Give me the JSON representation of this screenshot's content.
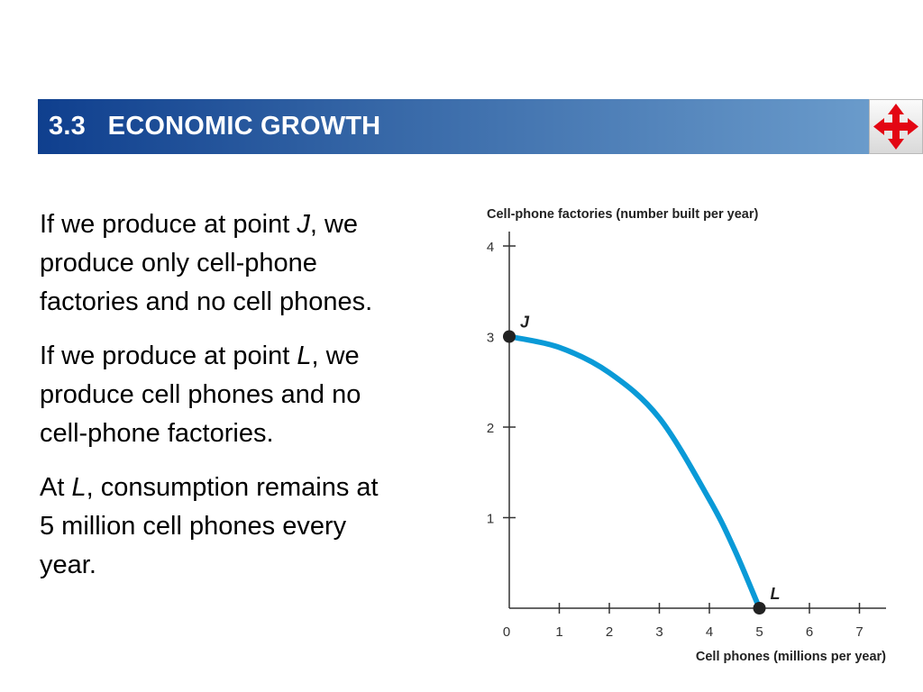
{
  "header": {
    "title": "3.3   ECONOMIC GROWTH",
    "nav_icon": "four-way-arrows-icon",
    "accent_color": "#0f3f8e",
    "nav_icon_color": "#e30613"
  },
  "paragraphs": [
    [
      {
        "text": "If we produce at point ",
        "italic": false
      },
      {
        "text": "J",
        "italic": true
      },
      {
        "text": ", we produce only cell-phone factories and no cell phones.",
        "italic": false
      }
    ],
    [
      {
        "text": "If we produce at point ",
        "italic": false
      },
      {
        "text": "L",
        "italic": true
      },
      {
        "text": ", we produce cell phones and no cell-phone factories.",
        "italic": false
      }
    ],
    [
      {
        "text": "At ",
        "italic": false
      },
      {
        "text": "L",
        "italic": true
      },
      {
        "text": ", consumption remains at 5 million cell phones every year.",
        "italic": false
      }
    ]
  ],
  "chart_data": {
    "type": "line",
    "title": "",
    "ylabel": "Cell-phone factories (number built per year)",
    "xlabel": "Cell phones (millions per year)",
    "xlim": [
      0,
      7.5
    ],
    "ylim": [
      0,
      4
    ],
    "x_ticks": [
      "0",
      "1",
      "2",
      "3",
      "4",
      "5",
      "6",
      "7"
    ],
    "y_ticks": [
      "1",
      "2",
      "3",
      "4"
    ],
    "grid": false,
    "series": [
      {
        "color": "#0a9ad7",
        "x": [
          0,
          1,
          2,
          3,
          4,
          4.5,
          5
        ],
        "y": [
          3,
          2.88,
          2.6,
          2.1,
          1.2,
          0.65,
          0
        ]
      }
    ],
    "points": [
      {
        "label": "J",
        "x": 0,
        "y": 3
      },
      {
        "label": "L",
        "x": 5,
        "y": 0
      }
    ]
  }
}
